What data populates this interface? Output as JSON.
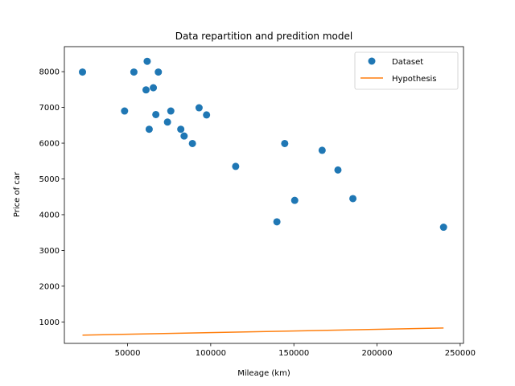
{
  "chart_data": {
    "type": "scatter",
    "title": "Data repartition and predition model",
    "xlabel": "Mileage (km)",
    "ylabel": "Price of car",
    "xlim": [
      12000,
      252000
    ],
    "ylim": [
      400,
      8700
    ],
    "xticks": [
      50000,
      100000,
      150000,
      200000,
      250000
    ],
    "yticks": [
      1000,
      2000,
      3000,
      4000,
      5000,
      6000,
      7000,
      8000
    ],
    "grid": false,
    "legend_position": "top-right",
    "series": [
      {
        "name": "Dataset",
        "kind": "scatter",
        "color": "#1f77b4",
        "points": [
          [
            22900,
            7990
          ],
          [
            48200,
            6900
          ],
          [
            53800,
            7990
          ],
          [
            61100,
            7490
          ],
          [
            61800,
            8290
          ],
          [
            63000,
            6390
          ],
          [
            65500,
            7550
          ],
          [
            67000,
            6800
          ],
          [
            68500,
            7990
          ],
          [
            74000,
            6590
          ],
          [
            76000,
            6900
          ],
          [
            82000,
            6390
          ],
          [
            84000,
            6200
          ],
          [
            89000,
            5990
          ],
          [
            93000,
            6990
          ],
          [
            97500,
            6790
          ],
          [
            115000,
            5350
          ],
          [
            139800,
            3800
          ],
          [
            144500,
            5990
          ],
          [
            150500,
            4400
          ],
          [
            167000,
            5800
          ],
          [
            176500,
            5250
          ],
          [
            185500,
            4450
          ],
          [
            240000,
            3650
          ]
        ]
      },
      {
        "name": "Hypothesis",
        "kind": "line",
        "color": "#ff7f0e",
        "points": [
          [
            22900,
            630
          ],
          [
            240000,
            830
          ]
        ]
      }
    ]
  }
}
